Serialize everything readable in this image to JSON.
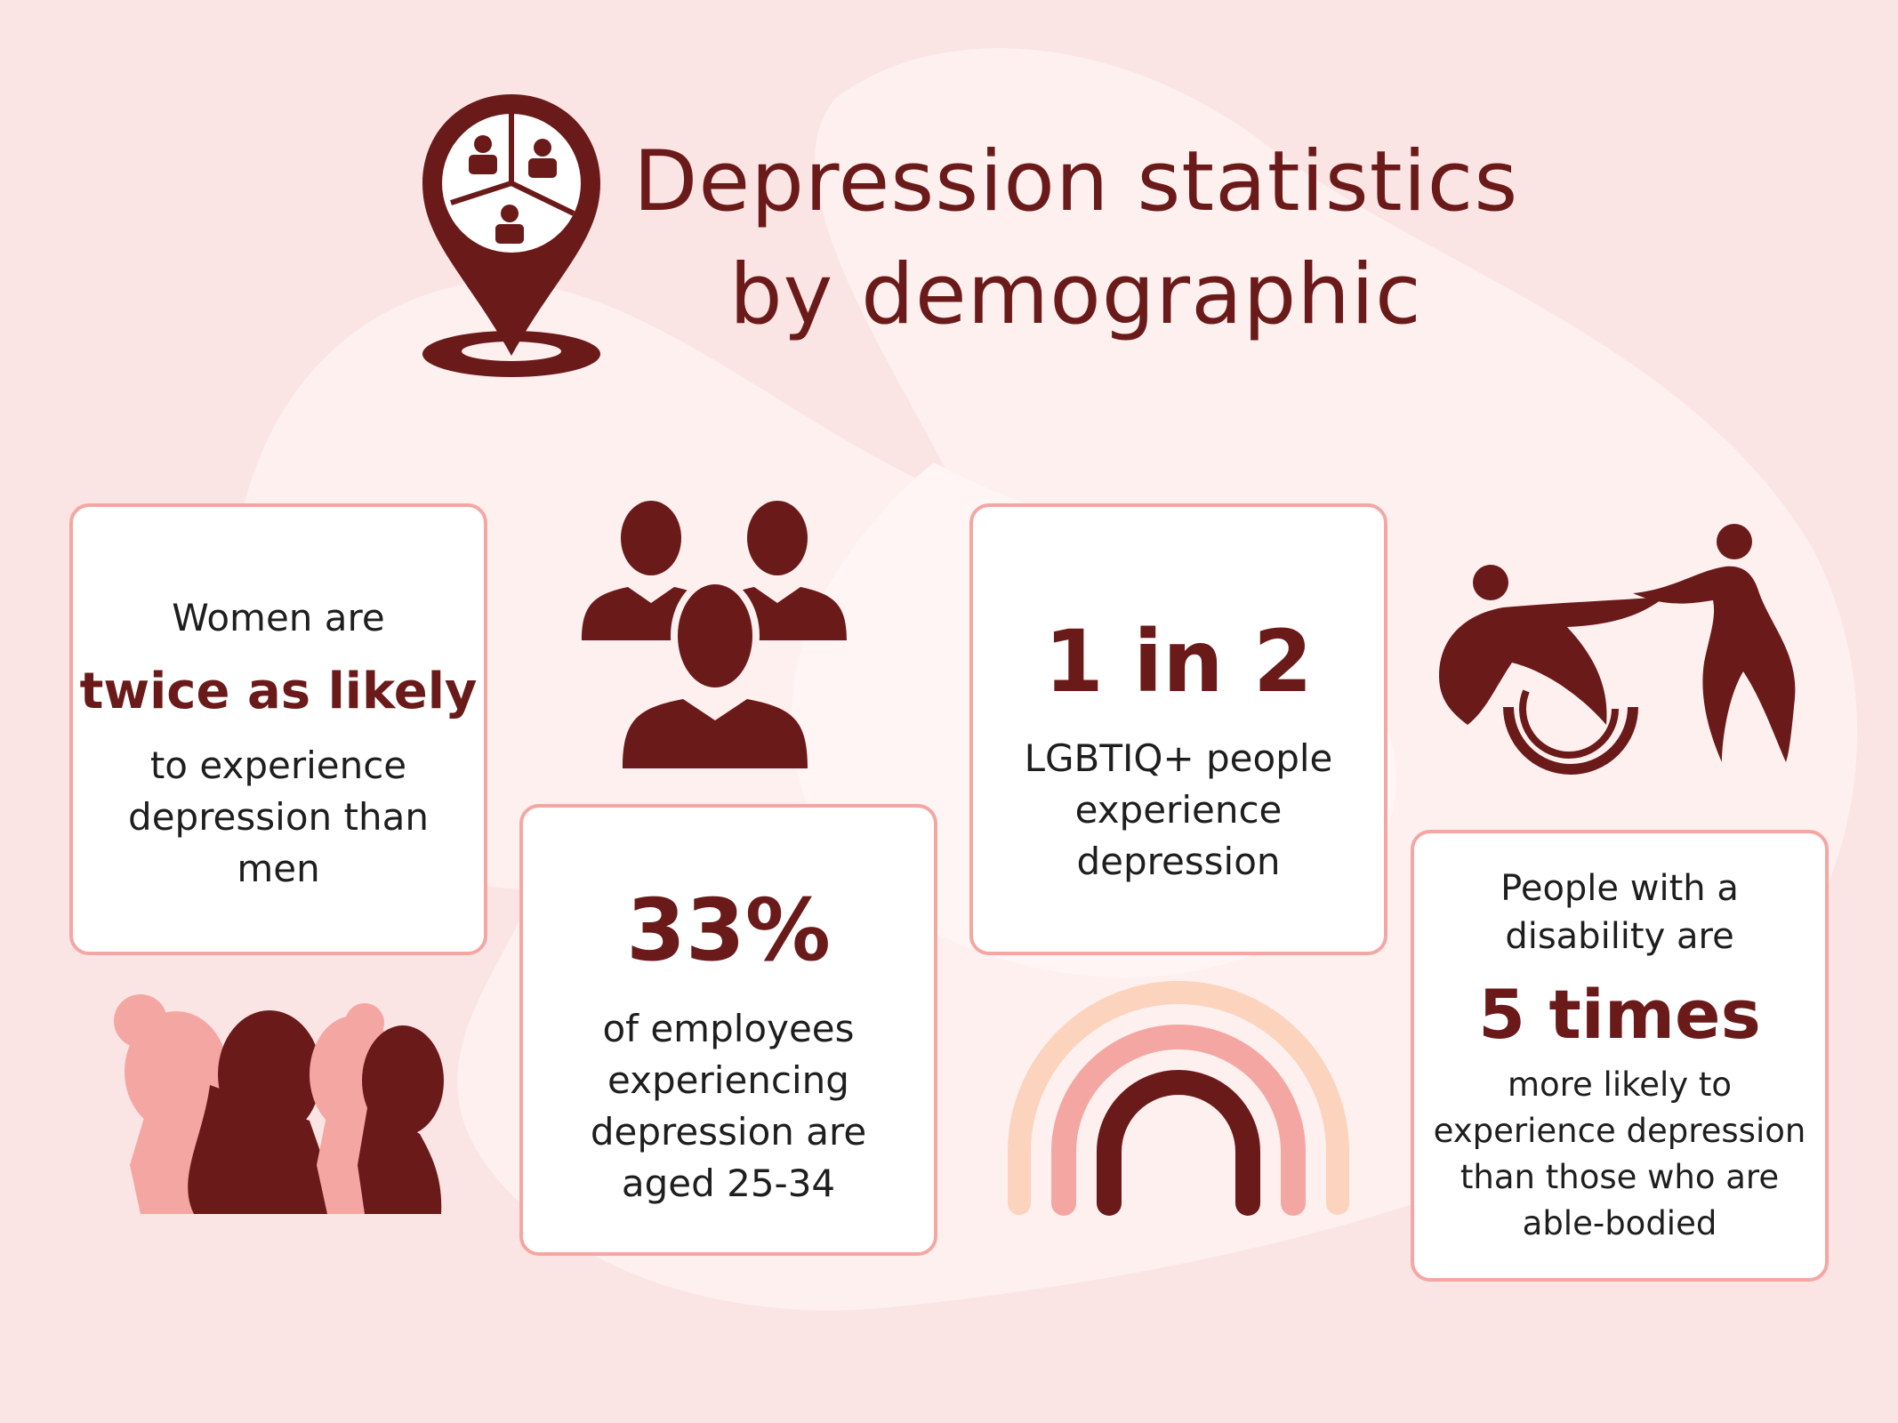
{
  "title": {
    "line1": "Depression statistics",
    "line2": "by demographic"
  },
  "cards": {
    "women": {
      "line1": "Women are",
      "highlight": "twice as likely",
      "line3": "to experience",
      "line4": "depression than",
      "line5": "men"
    },
    "employees": {
      "highlight": "33%",
      "line2": "of employees",
      "line3": "experiencing",
      "line4": "depression are",
      "line5": "aged 25-34"
    },
    "lgbtiq": {
      "highlight": "1 in 2",
      "line2": "LGBTIQ+ people",
      "line3": "experience",
      "line4": "depression"
    },
    "disability": {
      "line1": "People with a",
      "line2": "disability are",
      "highlight": "5 times",
      "line4": "more likely to",
      "line5": "experience depression",
      "line6": "than those who are",
      "line7": "able-bodied"
    }
  },
  "icons": {
    "location": "location-pin-people-icon",
    "group": "people-group-icon",
    "women": "women-silhouettes-icon",
    "rainbow": "rainbow-icon",
    "disability": "wheelchair-helping-hand-icon"
  },
  "colors": {
    "background": "#fbe4e4",
    "primary": "#6b1a1a",
    "accent_pink": "#f4a7a2",
    "rainbow_outer": "#fcd3bd",
    "card_background": "#ffffff"
  }
}
